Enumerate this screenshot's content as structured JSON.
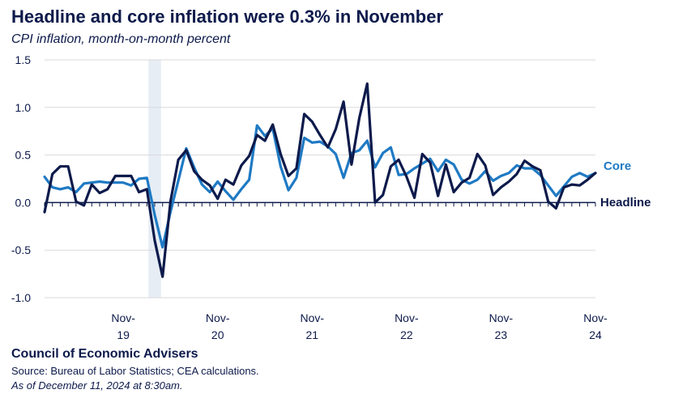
{
  "title": "Headline and core inflation were 0.3% in November",
  "subtitle": "CPI inflation, month-on-month percent",
  "footer": {
    "organization": "Council of Economic Advisers",
    "source": "Source: Bureau of Labor Statistics; CEA calculations.",
    "as_of": "As of December 11, 2024 at 8:30am."
  },
  "colors": {
    "headline": "#0d1a4b",
    "core": "#1f7ac4",
    "shade": "#e6edf5",
    "grid": "#d9d9d9"
  },
  "chart_data": {
    "type": "line",
    "title": "Headline and core inflation were 0.3% in November",
    "subtitle": "CPI inflation, month-on-month percent",
    "ylim": [
      -1.0,
      1.5
    ],
    "yticks": [
      -1.0,
      -0.5,
      0.0,
      0.5,
      1.0,
      1.5
    ],
    "ytick_labels": [
      "-1.0",
      "-0.5",
      "0.0",
      "0.5",
      "1.0",
      "1.5"
    ],
    "x_start": "Jan 2019",
    "x_end": "Nov 2024",
    "xticks": [
      {
        "index": 10,
        "line1": "Nov-",
        "line2": "19"
      },
      {
        "index": 22,
        "line1": "Nov-",
        "line2": "20"
      },
      {
        "index": 34,
        "line1": "Nov-",
        "line2": "21"
      },
      {
        "index": 46,
        "line1": "Nov-",
        "line2": "22"
      },
      {
        "index": 58,
        "line1": "Nov-",
        "line2": "23"
      },
      {
        "index": 70,
        "line1": "Nov-",
        "line2": "24"
      }
    ],
    "shaded_period": {
      "start_index": 13,
      "end_index": 15
    },
    "grid": "horizontal",
    "series": [
      {
        "name": "Headline",
        "label": "Headline",
        "values": [
          -0.1,
          0.3,
          0.38,
          0.38,
          0.01,
          -0.03,
          0.19,
          0.1,
          0.14,
          0.28,
          0.28,
          0.28,
          0.11,
          0.14,
          -0.4,
          -0.78,
          0.01,
          0.45,
          0.55,
          0.33,
          0.24,
          0.18,
          0.04,
          0.24,
          0.19,
          0.39,
          0.49,
          0.71,
          0.65,
          0.82,
          0.51,
          0.28,
          0.36,
          0.93,
          0.85,
          0.71,
          0.58,
          0.77,
          1.06,
          0.4,
          0.89,
          1.25,
          0.0,
          0.08,
          0.38,
          0.45,
          0.27,
          0.05,
          0.51,
          0.42,
          0.07,
          0.4,
          0.11,
          0.21,
          0.26,
          0.51,
          0.39,
          0.08,
          0.16,
          0.22,
          0.3,
          0.44,
          0.38,
          0.34,
          0.01,
          -0.06,
          0.16,
          0.19,
          0.18,
          0.24,
          0.31
        ]
      },
      {
        "name": "Core",
        "label": "Core",
        "values": [
          0.27,
          0.16,
          0.14,
          0.16,
          0.11,
          0.2,
          0.21,
          0.22,
          0.21,
          0.21,
          0.21,
          0.18,
          0.25,
          0.26,
          -0.13,
          -0.47,
          -0.1,
          0.23,
          0.57,
          0.37,
          0.19,
          0.11,
          0.22,
          0.12,
          0.03,
          0.14,
          0.24,
          0.81,
          0.7,
          0.78,
          0.38,
          0.13,
          0.26,
          0.68,
          0.63,
          0.64,
          0.59,
          0.51,
          0.26,
          0.52,
          0.55,
          0.65,
          0.37,
          0.52,
          0.58,
          0.29,
          0.3,
          0.36,
          0.41,
          0.46,
          0.33,
          0.45,
          0.4,
          0.24,
          0.2,
          0.24,
          0.33,
          0.23,
          0.28,
          0.31,
          0.39,
          0.36,
          0.36,
          0.29,
          0.18,
          0.07,
          0.17,
          0.27,
          0.31,
          0.27,
          0.31
        ]
      }
    ]
  }
}
